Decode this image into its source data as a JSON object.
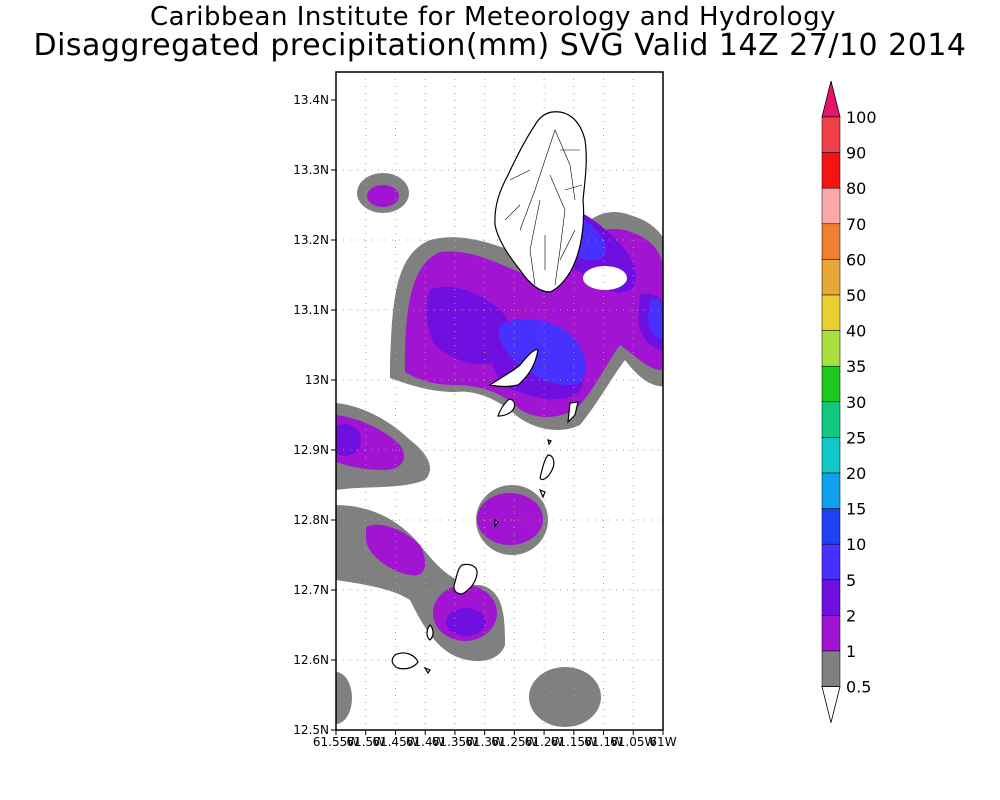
{
  "title": "Caribbean Institute for Meteorology and Hydrology",
  "subtitle": "Disaggregated precipitation(mm) SVG Valid 14Z 27/10 2014",
  "lat_ticks": [
    "13.4N",
    "13.3N",
    "13.2N",
    "13.1N",
    "13N",
    "12.9N",
    "12.8N",
    "12.7N",
    "12.6N",
    "12.5N"
  ],
  "lon_ticks": [
    "61.55W",
    "61.5W",
    "61.45W",
    "61.4W",
    "61.35W",
    "61.3W",
    "61.25W",
    "61.2W",
    "61.15W",
    "61.1W",
    "61.05W",
    "61W"
  ],
  "legend": {
    "labels": [
      "100",
      "90",
      "80",
      "70",
      "60",
      "50",
      "40",
      "35",
      "30",
      "25",
      "20",
      "15",
      "10",
      "5",
      "2",
      "1",
      "0.5"
    ],
    "colors": {
      "over": "#e8146c",
      "c100": "#f0404a",
      "c90": "#f41414",
      "c80": "#fca8a8",
      "c70": "#f08030",
      "c60": "#e8a838",
      "c50": "#e8d030",
      "c40": "#a8e040",
      "c35": "#1ec81e",
      "c30": "#10c880",
      "c25": "#10c8c8",
      "c20": "#10a0f0",
      "c15": "#2040f8",
      "c10": "#4830ff",
      "c5": "#7010e0",
      "c2": "#a014d2",
      "c1": "#808080"
    }
  },
  "map_colors": {
    "gray": "#808080",
    "purple": "#a014d2",
    "violet": "#7010e0",
    "blue": "#4830ff"
  }
}
